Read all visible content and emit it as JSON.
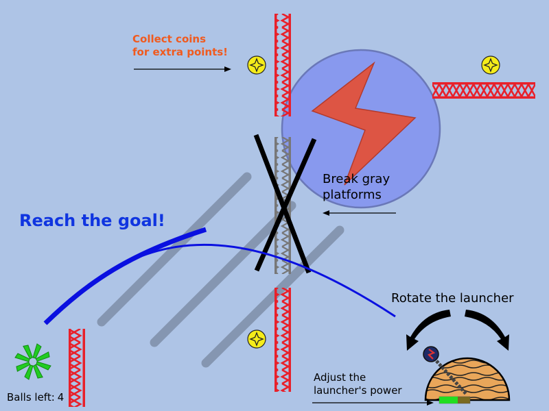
{
  "hints": {
    "coins_line1": "Collect coins",
    "coins_line2": "for extra points!",
    "goal": "Reach the goal!",
    "break_line1": "Break gray",
    "break_line2": "platforms",
    "rotate": "Rotate the launcher",
    "power_line1": "Adjust the",
    "power_line2": "launcher's power"
  },
  "status": {
    "balls_left_label": "Balls left:",
    "balls_left_value": "4"
  },
  "launcher": {
    "power_fraction": 0.6
  },
  "colors": {
    "background": "#aec4e6",
    "coins_hint": "#f05a1e",
    "goal_hint": "#1035e0",
    "trajectory": "#0a10e0",
    "girder_solid": "#e8202a",
    "girder_breakable": "#8a8a8a",
    "coin": "#f5ec1a",
    "bumper": "#8899ee",
    "bolt": "#dd5544",
    "power_bar": "#22dd22",
    "goal_vortex": "#22cc22"
  },
  "icons": {
    "coin": "coin-star-icon",
    "goal": "goal-vortex-icon",
    "bumper": "lightning-bumper-icon"
  }
}
